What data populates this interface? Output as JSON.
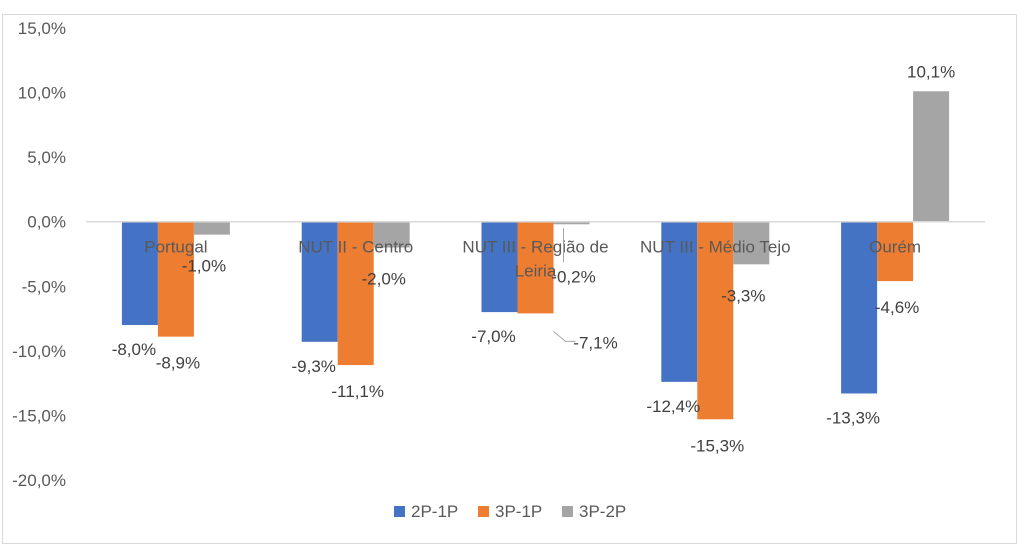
{
  "chart_data": {
    "type": "bar",
    "title": "",
    "xlabel": "",
    "ylabel": "",
    "ylim": [
      -20,
      15
    ],
    "y_ticks": [
      "15,0%",
      "10,0%",
      "5,0%",
      "0,0%",
      "-5,0%",
      "-10,0%",
      "-15,0%",
      "-20,0%"
    ],
    "y_tick_values": [
      15,
      10,
      5,
      0,
      -5,
      -10,
      -15,
      -20
    ],
    "categories": [
      [
        "Portugal"
      ],
      [
        "NUT II - Centro"
      ],
      [
        "NUT III - Região de",
        "Leiria"
      ],
      [
        "NUT III - Médio Tejo"
      ],
      [
        "Ourém"
      ]
    ],
    "series": [
      {
        "name": "2P-1P",
        "color": "#4472c4",
        "values": [
          -8.0,
          -9.3,
          -7.0,
          -12.4,
          -13.3
        ],
        "labels": [
          "-8,0%",
          "-9,3%",
          "-7,0%",
          "-12,4%",
          "-13,3%"
        ]
      },
      {
        "name": "3P-1P",
        "color": "#ed7d31",
        "values": [
          -8.9,
          -11.1,
          -7.1,
          -15.3,
          -4.6
        ],
        "labels": [
          "-8,9%",
          "-11,1%",
          "-7,1%",
          "-15,3%",
          "-4,6%"
        ]
      },
      {
        "name": "3P-2P",
        "color": "#a5a5a5",
        "values": [
          -1.0,
          -2.0,
          -0.2,
          -3.3,
          10.1
        ],
        "labels": [
          "-1,0%",
          "-2,0%",
          "-0,2%",
          "-3,3%",
          "10,1%"
        ]
      }
    ],
    "grid": false,
    "legend_position": "bottom"
  }
}
